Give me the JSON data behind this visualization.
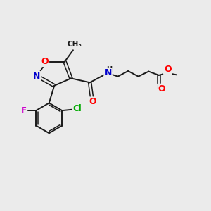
{
  "background_color": "#ebebeb",
  "bond_color": "#1a1a1a",
  "atom_colors": {
    "O": "#ff0000",
    "N": "#0000cc",
    "F": "#cc00cc",
    "Cl": "#00aa00",
    "H": "#1a1a1a",
    "C": "#1a1a1a"
  },
  "figsize": [
    3.0,
    3.0
  ],
  "dpi": 100
}
